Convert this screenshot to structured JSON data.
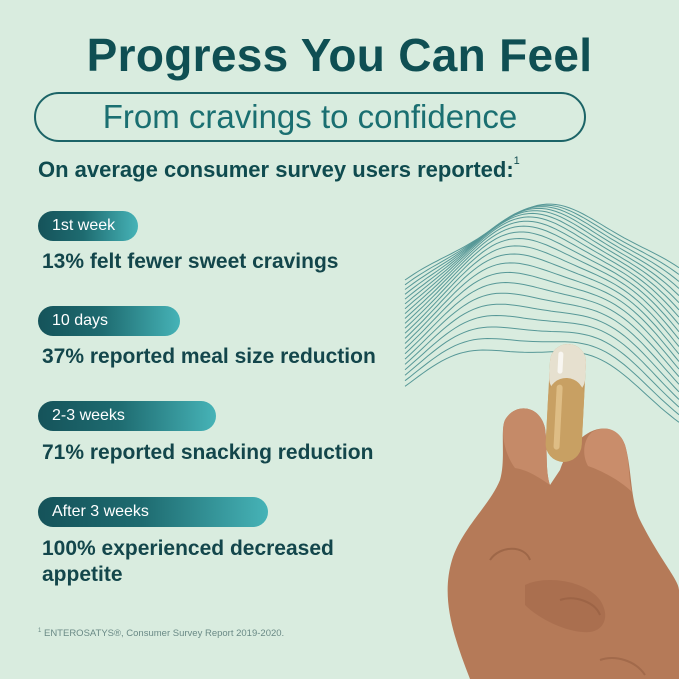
{
  "title": "Progress You Can Feel",
  "subtitle": "From cravings to confidence",
  "intro": {
    "text": "On average consumer survey users reported:",
    "sup": "1"
  },
  "milestones": [
    {
      "period": "1st week",
      "result": "13% felt fewer sweet cravings"
    },
    {
      "period": "10 days",
      "result": "37% reported meal size reduction"
    },
    {
      "period": "2-3 weeks",
      "result": "71% reported snacking reduction"
    },
    {
      "period": "After 3 weeks",
      "result_line1": "100% experienced decreased",
      "result_line2": "appetite"
    }
  ],
  "footnote": {
    "sup": "1",
    "text": "ENTEROSATYS®, Consumer Survey Report 2019-2020."
  },
  "colors": {
    "background": "#d9ecdf",
    "primary": "#0f4f53",
    "accent": "#46b3b7",
    "capsule": "#c9a56a"
  }
}
